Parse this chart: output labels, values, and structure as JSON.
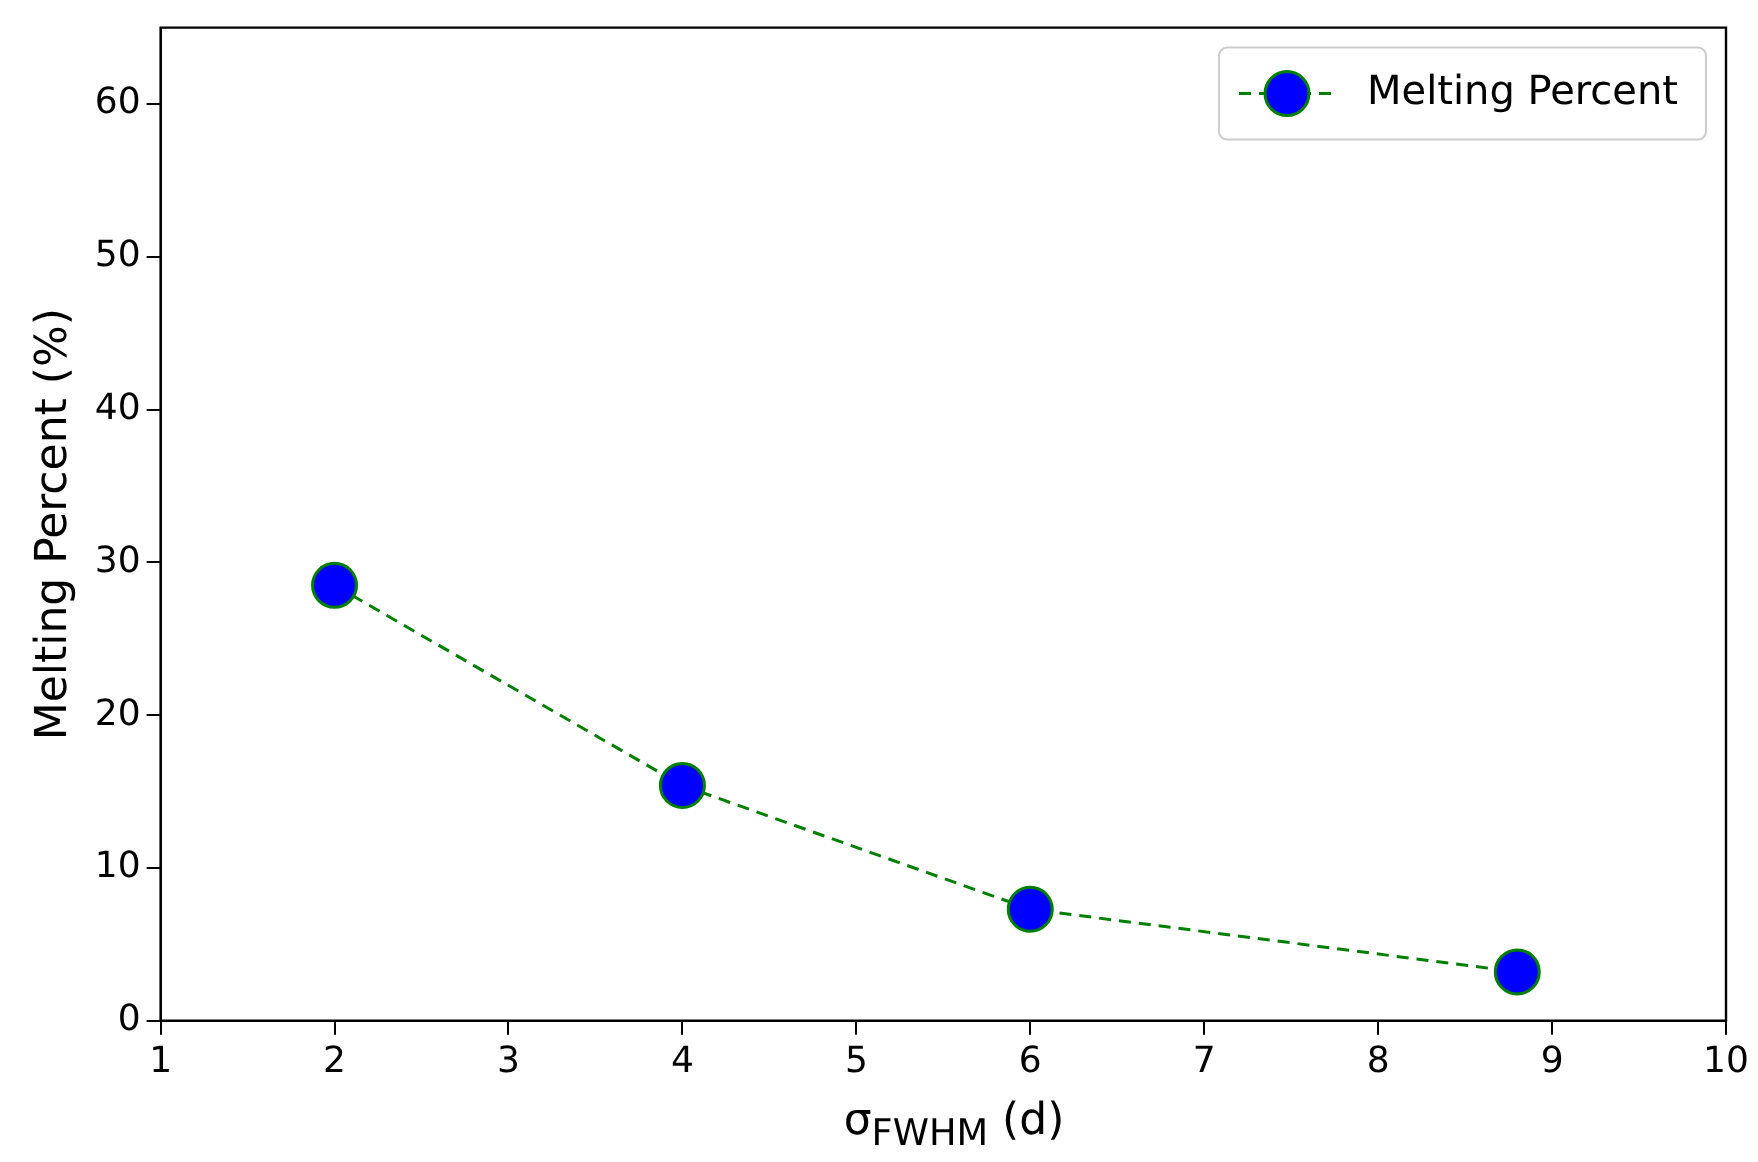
{
  "chart_data": {
    "type": "line",
    "xlabel": "σ$_{FWHM}$ (d)",
    "ylabel": "Melting Percent (%)",
    "x": [
      2,
      4,
      6,
      8.8
    ],
    "series": [
      {
        "name": "Melting Percent",
        "color": "#0000ff",
        "values": [
          28.5,
          15.4,
          7.3,
          3.2
        ]
      }
    ],
    "xlim": [
      1,
      10
    ],
    "xticks": [
      1,
      2,
      3,
      4,
      5,
      6,
      7,
      8,
      9,
      10
    ],
    "ylim": [
      0,
      65
    ],
    "yticks": [
      0,
      10,
      20,
      30,
      40,
      50,
      60
    ],
    "grid": false,
    "legend": "top right",
    "marker": "circle",
    "line_style": "dashed"
  }
}
